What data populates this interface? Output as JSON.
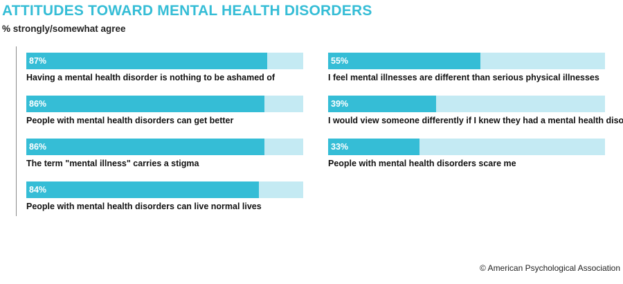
{
  "chart_data": {
    "type": "bar",
    "orientation": "horizontal",
    "title": "ATTITUDES TOWARD MENTAL HEALTH DISORDERS",
    "subtitle": "% strongly/somewhat agree",
    "xlim": [
      0,
      100
    ],
    "colors": {
      "fill": "#35bdd6",
      "track": "#c4eaf3",
      "title": "#35bdd6"
    },
    "items": [
      {
        "label": "Having a mental health disorder is nothing to be ashamed of",
        "value": 87,
        "value_label": "87%"
      },
      {
        "label": "People with mental health disorders can get better",
        "value": 86,
        "value_label": "86%"
      },
      {
        "label": "The term \"mental illness\" carries a stigma",
        "value": 86,
        "value_label": "86%"
      },
      {
        "label": "People with mental health disorders can live normal lives",
        "value": 84,
        "value_label": "84%"
      },
      {
        "label": "I feel mental illnesses are different than serious physical illnesses",
        "value": 55,
        "value_label": "55%"
      },
      {
        "label": "I would view someone differently if I knew they had a mental health disorder",
        "value": 39,
        "value_label": "39%"
      },
      {
        "label": "People with mental health disorders scare me",
        "value": 33,
        "value_label": "33%"
      }
    ]
  },
  "credit": "© American Psychological Association"
}
